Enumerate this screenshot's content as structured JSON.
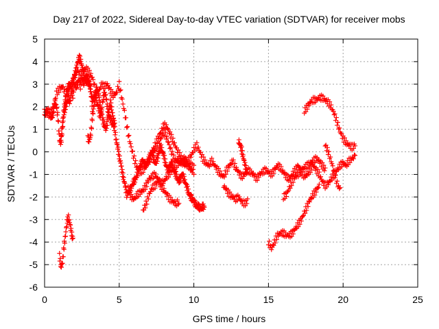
{
  "chart_data": {
    "type": "scatter",
    "title": "Day 217 of 2022, Sidereal Day-to-day VTEC variation (SDTVAR) for receiver mobs",
    "xlabel": "GPS time / hours",
    "ylabel": "SDTVAR / TECUs",
    "xlim": [
      0,
      25
    ],
    "ylim": [
      -6,
      5
    ],
    "xticks": [
      0,
      5,
      10,
      15,
      20,
      25
    ],
    "yticks": [
      -6,
      -5,
      -4,
      -3,
      -2,
      -1,
      0,
      1,
      2,
      3,
      4,
      5
    ],
    "grid": true,
    "marker": "+",
    "color": "#ff0000",
    "series": [
      {
        "name": "s1",
        "x": [
          0.0,
          0.2,
          0.4,
          0.5,
          0.6,
          0.7,
          0.8,
          0.9,
          1.0,
          1.1,
          1.2,
          1.3,
          1.4,
          1.5,
          1.6,
          1.7,
          1.8,
          1.9,
          2.0,
          2.1,
          2.2,
          2.3,
          2.4,
          2.5,
          2.6,
          2.7,
          2.8,
          2.9,
          3.0,
          3.1,
          3.2,
          3.3,
          3.4,
          3.5,
          3.6,
          3.7,
          3.8,
          3.9,
          4.0,
          4.1,
          4.2,
          4.3,
          4.4,
          4.5,
          4.6,
          4.7,
          4.8,
          4.9,
          5.0,
          5.1,
          5.2,
          5.3,
          5.4,
          5.5,
          5.6,
          5.7,
          5.8,
          5.9,
          6.0,
          6.1,
          6.2,
          6.3,
          6.4,
          6.5,
          6.6,
          6.7,
          6.8,
          6.9,
          7.0,
          7.1,
          7.2,
          7.3,
          7.4,
          7.5,
          7.6,
          7.7,
          7.8,
          7.9,
          8.0,
          8.1,
          8.2,
          8.3,
          8.4,
          8.5,
          8.6,
          8.7,
          8.8,
          8.9,
          9.0,
          9.1,
          9.2,
          9.3,
          9.4,
          9.5,
          9.6,
          9.7,
          9.8,
          9.9,
          10.0,
          10.1,
          10.2,
          10.3,
          10.4,
          10.5,
          10.6,
          10.7
        ],
        "y": [
          1.6,
          1.7,
          1.6,
          1.5,
          1.8,
          2.2,
          2.0,
          1.5,
          0.5,
          0.4,
          1.0,
          1.7,
          2.0,
          2.2,
          2.4,
          2.2,
          2.7,
          2.5,
          3.0,
          2.9,
          3.0,
          3.2,
          2.9,
          3.3,
          3.0,
          3.2,
          3.4,
          3.1,
          3.0,
          2.6,
          2.3,
          2.4,
          2.6,
          2.2,
          2.0,
          1.6,
          1.7,
          2.3,
          2.6,
          2.5,
          2.0,
          1.6,
          1.5,
          1.3,
          1.2,
          1.0,
          0.5,
          0.2,
          -0.2,
          -0.5,
          -0.9,
          -1.2,
          -1.5,
          -1.9,
          -1.8,
          -1.7,
          -1.6,
          -1.4,
          -1.3,
          -1.2,
          -1.0,
          -0.8,
          -0.6,
          -0.5,
          -0.4,
          -0.5,
          -0.6,
          -0.4,
          -0.3,
          -0.1,
          0.0,
          -0.3,
          -0.5,
          -0.4,
          -0.2,
          0.1,
          0.2,
          0.0,
          -0.2,
          -0.5,
          -0.7,
          -0.8,
          -0.6,
          -0.5,
          -0.7,
          -0.9,
          -1.0,
          -1.2,
          -1.3,
          -1.2,
          -1.0,
          -1.1,
          -1.3,
          -1.5,
          -1.7,
          -1.9,
          -2.0,
          -2.1,
          -2.2,
          -2.3,
          -2.4,
          -2.4,
          -2.5,
          -2.5,
          -2.4,
          -2.5
        ]
      },
      {
        "name": "s2",
        "x": [
          0.0,
          0.2,
          0.4,
          0.6,
          0.8,
          1.0,
          1.2,
          1.4,
          1.6,
          1.8,
          2.0,
          2.2,
          2.4,
          2.6,
          2.8,
          3.0,
          3.2,
          3.4,
          3.6,
          3.8,
          4.0,
          4.2,
          4.4,
          4.6,
          4.8,
          5.0,
          5.2,
          5.4,
          5.6,
          5.8,
          6.0,
          6.2,
          6.4,
          6.6,
          6.8,
          7.0,
          7.2,
          7.4,
          7.6,
          7.8,
          8.0,
          8.2,
          8.4,
          8.6,
          8.8,
          9.0,
          9.2,
          9.4,
          9.6,
          9.8,
          10.0,
          10.2,
          10.4,
          10.6,
          10.8,
          11.0,
          11.2,
          11.4,
          11.6,
          11.8,
          12.0,
          12.2,
          12.4,
          12.6,
          12.8,
          13.0,
          13.2,
          13.4,
          13.6,
          13.8,
          14.0,
          14.2,
          14.4,
          14.6,
          14.8,
          15.0,
          15.2,
          15.4,
          15.6,
          15.8,
          16.0,
          16.2,
          16.4,
          16.6,
          16.8,
          17.0,
          17.2,
          17.4,
          17.6,
          17.8,
          18.0,
          18.2,
          18.4,
          18.6,
          18.8,
          19.0,
          19.2,
          19.4,
          19.6,
          19.8,
          20.0,
          20.2,
          20.4,
          20.6,
          20.8
        ],
        "y": [
          1.8,
          1.9,
          1.7,
          2.0,
          2.6,
          2.8,
          2.9,
          2.6,
          2.7,
          3.0,
          3.3,
          3.6,
          3.4,
          3.6,
          3.7,
          3.5,
          3.3,
          2.8,
          2.6,
          3.0,
          2.9,
          3.0,
          2.7,
          2.5,
          2.6,
          3.0,
          2.3,
          1.6,
          0.8,
          0.2,
          -0.3,
          -0.7,
          -0.9,
          -0.8,
          -0.6,
          -0.4,
          -0.2,
          0.1,
          0.3,
          0.6,
          0.9,
          0.6,
          0.2,
          -0.2,
          -0.4,
          -0.3,
          -0.5,
          -0.6,
          -0.4,
          -0.2,
          0.1,
          0.3,
          0.0,
          -0.3,
          -0.5,
          -0.6,
          -0.4,
          -0.6,
          -0.8,
          -1.0,
          -1.1,
          -0.8,
          -0.6,
          -0.4,
          -0.7,
          -0.9,
          -1.1,
          -1.0,
          -0.8,
          -0.9,
          -1.0,
          -1.2,
          -1.0,
          -0.9,
          -0.8,
          -0.9,
          -1.0,
          -0.8,
          -0.6,
          -0.7,
          -0.9,
          -1.1,
          -1.2,
          -1.0,
          -0.8,
          -0.6,
          -0.9,
          -1.1,
          -1.0,
          -0.8,
          -0.6,
          -0.8,
          -1.0,
          -1.3,
          -1.5,
          -1.4,
          -1.2,
          -1.0,
          -0.8,
          -0.6,
          -0.5,
          -0.6,
          -0.4,
          -0.3,
          -0.2
        ]
      },
      {
        "name": "s3",
        "x": [
          1.1,
          1.2,
          1.3,
          1.4,
          1.5,
          1.6,
          1.7,
          1.8,
          1.9,
          2.0,
          2.1,
          2.2,
          2.3,
          2.4,
          2.5,
          2.6,
          2.7,
          2.8,
          2.9,
          3.0,
          3.1,
          3.2
        ],
        "y": [
          0.6,
          1.3,
          1.9,
          2.3,
          2.7,
          2.9,
          3.0,
          2.9,
          3.1,
          3.4,
          3.6,
          3.9,
          4.2,
          4.1,
          3.8,
          3.5,
          3.2,
          3.1,
          3.3,
          3.1,
          2.8,
          1.9
        ]
      },
      {
        "name": "s4",
        "x": [
          2.9,
          3.0,
          3.1,
          3.2,
          3.3,
          3.4,
          3.5,
          3.6,
          3.7,
          3.8,
          3.9,
          4.0,
          4.1,
          4.2,
          4.3,
          4.4,
          4.5,
          4.6,
          4.7
        ],
        "y": [
          0.6,
          0.5,
          0.8,
          1.5,
          2.0,
          2.4,
          2.8,
          2.6,
          2.2,
          1.8,
          1.4,
          1.2,
          1.0,
          1.3,
          1.8,
          2.2,
          1.9,
          1.5,
          1.2
        ]
      },
      {
        "name": "s5",
        "x": [
          1.0,
          1.1,
          1.2,
          1.3,
          1.4,
          1.5,
          1.6,
          1.7,
          1.8,
          1.9
        ],
        "y": [
          -4.6,
          -5.1,
          -4.9,
          -4.2,
          -3.7,
          -3.1,
          -2.9,
          -3.2,
          -3.6,
          -3.9
        ]
      },
      {
        "name": "s6",
        "x": [
          5.6,
          5.8,
          6.0,
          6.2,
          6.4,
          6.6,
          6.8,
          7.0,
          7.2,
          7.4,
          7.6,
          7.8,
          8.0,
          8.2,
          8.4,
          8.6,
          8.8,
          9.0,
          9.2,
          9.4,
          9.6,
          9.8,
          10.0
        ],
        "y": [
          -1.6,
          -2.0,
          -2.1,
          -1.9,
          -1.8,
          -1.7,
          -1.5,
          -1.2,
          -1.1,
          -1.0,
          -1.2,
          -1.4,
          -1.3,
          -1.1,
          -0.9,
          -0.8,
          -0.6,
          -0.5,
          -0.4,
          -0.3,
          -0.5,
          -0.6,
          -0.7
        ]
      },
      {
        "name": "s7",
        "x": [
          6.6,
          6.8,
          7.0,
          7.2,
          7.4,
          7.6,
          7.8,
          8.0,
          8.2,
          8.4,
          8.6,
          8.8,
          9.0
        ],
        "y": [
          -2.6,
          -2.3,
          -1.9,
          -1.6,
          -1.5,
          -1.3,
          -1.5,
          -1.7,
          -1.9,
          -2.1,
          -2.2,
          -2.3,
          -2.2
        ]
      },
      {
        "name": "s8",
        "x": [
          7.2,
          7.4,
          7.6,
          7.8,
          8.0,
          8.2,
          8.4,
          8.6,
          8.8,
          9.0,
          9.2,
          9.4,
          9.6,
          9.8,
          10.0
        ],
        "y": [
          0.0,
          0.3,
          0.6,
          0.9,
          1.2,
          1.1,
          0.8,
          0.5,
          0.2,
          -0.1,
          -0.3,
          -0.4,
          -0.6,
          -0.8,
          -0.9
        ]
      },
      {
        "name": "s9",
        "x": [
          12.0,
          12.2,
          12.4,
          12.6,
          12.8,
          13.0,
          13.2,
          13.4,
          13.6
        ],
        "y": [
          -1.5,
          -1.7,
          -1.9,
          -2.0,
          -2.1,
          -2.0,
          -2.2,
          -2.3,
          -2.2
        ]
      },
      {
        "name": "s10",
        "x": [
          13.0,
          13.1,
          13.2,
          13.3,
          13.4,
          13.5,
          13.6
        ],
        "y": [
          0.5,
          0.3,
          0.1,
          -0.2,
          -0.5,
          -0.8,
          -1.0
        ]
      },
      {
        "name": "s11",
        "x": [
          15.0,
          15.2,
          15.4,
          15.6,
          15.8,
          16.0,
          16.2,
          16.4,
          16.6,
          16.8,
          17.0,
          17.2,
          17.4,
          17.6,
          17.8,
          18.0,
          18.2,
          18.4
        ],
        "y": [
          -4.0,
          -4.3,
          -4.0,
          -3.7,
          -3.6,
          -3.6,
          -3.7,
          -3.7,
          -3.6,
          -3.4,
          -3.2,
          -3.0,
          -2.7,
          -2.4,
          -2.1,
          -1.9,
          -1.7,
          -1.5
        ]
      },
      {
        "name": "s12",
        "x": [
          16.0,
          16.2,
          16.4,
          16.6,
          16.8,
          17.0,
          17.2,
          17.4,
          17.6,
          17.8,
          18.0,
          18.2,
          18.4,
          18.6,
          18.8
        ],
        "y": [
          -2.0,
          -1.9,
          -1.6,
          -1.3,
          -1.1,
          -1.0,
          -0.8,
          -0.7,
          -0.6,
          -0.5,
          -0.4,
          -0.3,
          -0.4,
          -0.6,
          -0.8
        ]
      },
      {
        "name": "s13",
        "x": [
          17.4,
          17.6,
          17.8,
          18.0,
          18.2,
          18.4,
          18.6,
          18.8,
          19.0,
          19.2,
          19.4,
          19.6,
          19.8,
          20.0,
          20.2,
          20.4,
          20.6,
          20.8
        ],
        "y": [
          1.8,
          2.0,
          2.2,
          2.3,
          2.3,
          2.4,
          2.4,
          2.3,
          2.2,
          2.0,
          1.7,
          1.3,
          0.9,
          0.6,
          0.4,
          0.3,
          0.2,
          0.3
        ]
      },
      {
        "name": "s14",
        "x": [
          18.8,
          19.0,
          19.2,
          19.4,
          19.6,
          19.8
        ],
        "y": [
          0.3,
          0.0,
          -0.4,
          -0.9,
          -1.4,
          -1.7
        ]
      }
    ]
  }
}
